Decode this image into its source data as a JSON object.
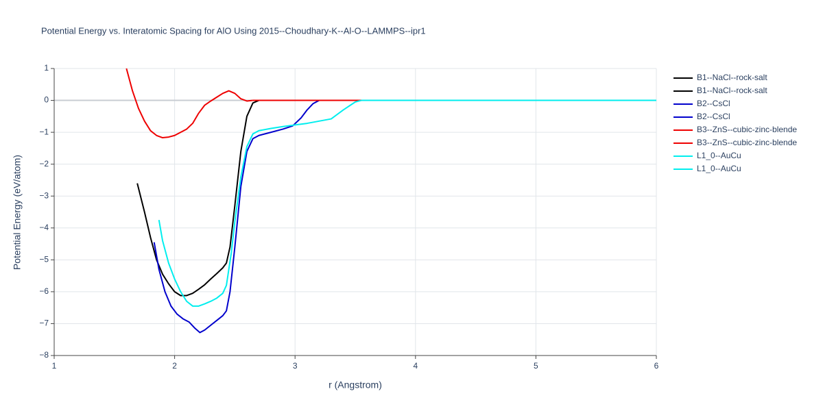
{
  "chart_data": {
    "type": "line",
    "title": "Potential Energy vs. Interatomic Spacing for AlO Using 2015--Choudhary-K--Al-O--LAMMPS--ipr1",
    "x_label": "r (Angstrom)",
    "y_label": "Potential Energy (eV/atom)",
    "xlim": [
      1,
      6
    ],
    "xticks": [
      1,
      2,
      3,
      4,
      5,
      6
    ],
    "ylim": [
      -8,
      1
    ],
    "yticks": [
      {
        "value": -8,
        "label": "−8"
      },
      {
        "value": -7,
        "label": "−7"
      },
      {
        "value": -6,
        "label": "−6"
      },
      {
        "value": -5,
        "label": "−5"
      },
      {
        "value": -4,
        "label": "−4"
      },
      {
        "value": -3,
        "label": "−3"
      },
      {
        "value": -2,
        "label": "−2"
      },
      {
        "value": -1,
        "label": "−1"
      },
      0,
      1
    ],
    "grid": true,
    "series": [
      {
        "name": "B1--NaCl--rock-salt",
        "color": "#000000",
        "x": [
          1.69,
          1.75,
          1.8,
          1.85,
          1.9,
          1.95,
          2.0,
          2.05,
          2.1,
          2.15,
          2.2,
          2.25,
          2.3,
          2.35,
          2.4,
          2.43,
          2.46,
          2.5,
          2.55,
          2.6,
          2.65,
          2.7
        ],
        "values": [
          -2.6,
          -3.5,
          -4.3,
          -5.0,
          -5.45,
          -5.75,
          -6.0,
          -6.12,
          -6.12,
          -6.05,
          -5.92,
          -5.78,
          -5.6,
          -5.43,
          -5.25,
          -5.1,
          -4.6,
          -3.3,
          -1.6,
          -0.5,
          -0.08,
          0
        ]
      },
      {
        "name": "B1--NaCl--rock-salt",
        "color": "#000000",
        "x": [
          2.7,
          6
        ],
        "values": [
          0,
          0
        ]
      },
      {
        "name": "B2--CsCl",
        "color": "#0000cc",
        "x": [
          1.83,
          1.87,
          1.92,
          1.97,
          2.02,
          2.07,
          2.12,
          2.17,
          2.21,
          2.25,
          2.3,
          2.35,
          2.4,
          2.43,
          2.46,
          2.5,
          2.55,
          2.6,
          2.65,
          2.7,
          2.8,
          2.9,
          2.98,
          3.05,
          3.1,
          3.15,
          3.2
        ],
        "values": [
          -4.45,
          -5.3,
          -6.0,
          -6.45,
          -6.7,
          -6.85,
          -6.95,
          -7.15,
          -7.28,
          -7.2,
          -7.05,
          -6.9,
          -6.75,
          -6.6,
          -6.0,
          -4.6,
          -2.7,
          -1.6,
          -1.2,
          -1.1,
          -1.0,
          -0.9,
          -0.8,
          -0.55,
          -0.3,
          -0.1,
          0
        ]
      },
      {
        "name": "B2--CsCl",
        "color": "#0000cc",
        "x": [
          3.2,
          6
        ],
        "values": [
          0,
          0
        ]
      },
      {
        "name": "B3--ZnS--cubic-zinc-blende",
        "color": "#ee0000",
        "x": [
          1.6,
          1.65,
          1.7,
          1.75,
          1.8,
          1.85,
          1.9,
          1.95,
          2.0,
          2.05,
          2.1,
          2.15,
          2.2,
          2.25,
          2.3,
          2.35,
          2.4,
          2.45,
          2.5,
          2.55,
          2.6,
          2.65
        ],
        "values": [
          1.0,
          0.3,
          -0.25,
          -0.65,
          -0.95,
          -1.1,
          -1.17,
          -1.15,
          -1.1,
          -1.0,
          -0.9,
          -0.72,
          -0.4,
          -0.15,
          -0.02,
          0.1,
          0.22,
          0.3,
          0.22,
          0.05,
          -0.02,
          0
        ]
      },
      {
        "name": "B3--ZnS--cubic-zinc-blende",
        "color": "#ee0000",
        "x": [
          2.65,
          6
        ],
        "values": [
          0,
          0
        ]
      },
      {
        "name": "L1_0--AuCu",
        "color": "#00eeee",
        "x": [
          1.87,
          1.9,
          1.95,
          2.0,
          2.05,
          2.1,
          2.15,
          2.2,
          2.25,
          2.3,
          2.35,
          2.4,
          2.43,
          2.47,
          2.5,
          2.55,
          2.6,
          2.65,
          2.7,
          2.8,
          2.9,
          3.0,
          3.1,
          3.2,
          3.3,
          3.4,
          3.5,
          3.55
        ],
        "values": [
          -3.75,
          -4.4,
          -5.1,
          -5.6,
          -6.0,
          -6.3,
          -6.45,
          -6.45,
          -6.38,
          -6.3,
          -6.2,
          -6.05,
          -5.8,
          -4.8,
          -3.8,
          -2.4,
          -1.45,
          -1.05,
          -0.95,
          -0.88,
          -0.82,
          -0.77,
          -0.72,
          -0.65,
          -0.58,
          -0.3,
          -0.05,
          0
        ]
      },
      {
        "name": "L1_0--AuCu",
        "color": "#00eeee",
        "x": [
          3.55,
          6
        ],
        "values": [
          0,
          0
        ]
      }
    ]
  }
}
